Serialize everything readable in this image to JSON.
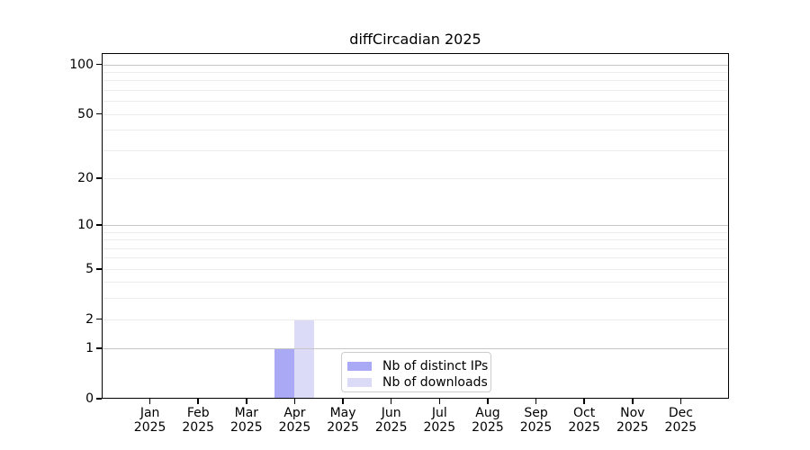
{
  "title": "diffCircadian 2025",
  "chart_data": {
    "type": "bar",
    "title": "diffCircadian 2025",
    "categories": [
      "Jan",
      "Feb",
      "Mar",
      "Apr",
      "May",
      "Jun",
      "Jul",
      "Aug",
      "Sep",
      "Oct",
      "Nov",
      "Dec"
    ],
    "category_year": "2025",
    "series": [
      {
        "name": "Nb of distinct IPs",
        "color": "#a9a9f5",
        "values": [
          0,
          0,
          0,
          1,
          0,
          0,
          0,
          0,
          0,
          0,
          0,
          0
        ]
      },
      {
        "name": "Nb of downloads",
        "color": "#dbdbf8",
        "values": [
          0,
          0,
          0,
          2,
          0,
          0,
          0,
          0,
          0,
          0,
          0,
          0
        ]
      }
    ],
    "xlabel": "",
    "ylabel": "",
    "y_axis": {
      "scale": "log1p",
      "ticks": [
        0,
        1,
        2,
        5,
        10,
        20,
        50,
        100
      ],
      "max": 117,
      "gridlines_major": [
        1,
        10,
        100
      ],
      "gridlines_minor": [
        2,
        3,
        4,
        5,
        6,
        7,
        8,
        9,
        20,
        30,
        40,
        50,
        60,
        70,
        80,
        90
      ]
    },
    "grid": true,
    "legend": {
      "position": "lower center",
      "entries": [
        "Nb of distinct IPs",
        "Nb of downloads"
      ]
    },
    "colors": {
      "axis": "#000000",
      "text": "#000000",
      "gridline_major": "#c6c6c6",
      "gridline_minor": "#ececec",
      "legend_border": "#cccccc",
      "background": "#ffffff"
    }
  }
}
